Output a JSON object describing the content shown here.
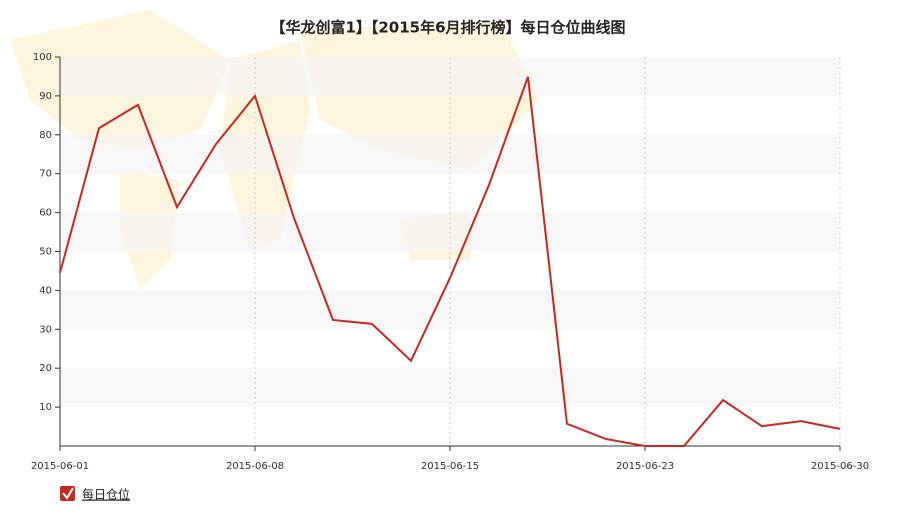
{
  "chart_data": {
    "type": "line",
    "title": "【华龙创富1】【2015年6月排行榜】每日仓位曲线图",
    "categories": [
      "2015-06-01",
      null,
      null,
      null,
      null,
      "2015-06-08",
      null,
      null,
      null,
      null,
      "2015-06-15",
      null,
      null,
      null,
      null,
      "2015-06-23",
      null,
      null,
      null,
      null,
      "2015-06-30"
    ],
    "series": [
      {
        "name": "每日仓位",
        "color": "#c8281e",
        "values": [
          44.5,
          81.7,
          87.7,
          61.4,
          77.6,
          90,
          58.6,
          32.4,
          31.4,
          21.9,
          43.2,
          67.1,
          94.9,
          5.7,
          1.8,
          0,
          0,
          11.8,
          5.1,
          6.4,
          4.4
        ]
      }
    ],
    "ylim": [
      0,
      100
    ],
    "yticks": [
      10,
      20,
      30,
      40,
      50,
      60,
      70,
      80,
      90,
      100
    ],
    "grid": true,
    "legend": "bottom-left"
  }
}
